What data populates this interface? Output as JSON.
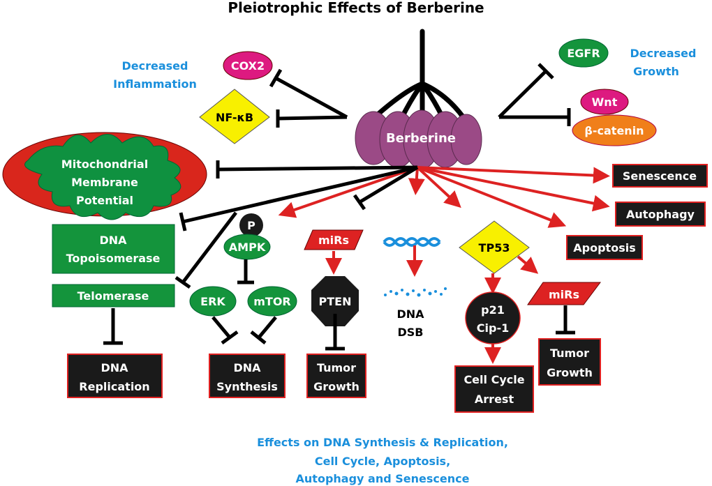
{
  "title": "Pleiotrophic Effects of Berberine",
  "center": "Berberine",
  "inflammation": {
    "label": [
      "Decreased",
      "Inflammation"
    ],
    "nodes": [
      "COX2",
      "NF-κB"
    ]
  },
  "growth": {
    "label": [
      "Decreased",
      "Growth"
    ],
    "nodes": [
      "EGFR",
      "Wnt",
      "β-catenin"
    ]
  },
  "mito": [
    "Mitochondrial",
    "Membrane",
    "Potential"
  ],
  "outcomes": [
    "Senescence",
    "Autophagy",
    "Apoptosis"
  ],
  "topo": [
    "DNA",
    "Topoisomerase"
  ],
  "telomerase": "Telomerase",
  "dna_replication": [
    "DNA",
    "Replication"
  ],
  "p": "P",
  "ampk": "AMPK",
  "erk": "ERK",
  "mtor": "mTOR",
  "dna_synthesis": [
    "DNA",
    "Synthesis"
  ],
  "mirs1": "miRs",
  "pten": "PTEN",
  "tumor1": [
    "Tumor",
    "Growth"
  ],
  "dsb": [
    "DNA",
    "DSB"
  ],
  "tp53": "TP53",
  "p21": [
    "p21",
    "Cip-1"
  ],
  "mirs2": "miRs",
  "tumor2": [
    "Tumor",
    "Growth"
  ],
  "cell_cycle": [
    "Cell Cycle",
    "Arrest"
  ],
  "footer": [
    "Effects on DNA Synthesis  & Replication,",
    "Cell Cycle, Apoptosis,",
    "Autophagy and Senescence"
  ],
  "colors": {
    "activation": "#dd2222",
    "inhibition": "#000000",
    "label_blue": "#1a8fdc",
    "berberine": "#9b4a86"
  }
}
